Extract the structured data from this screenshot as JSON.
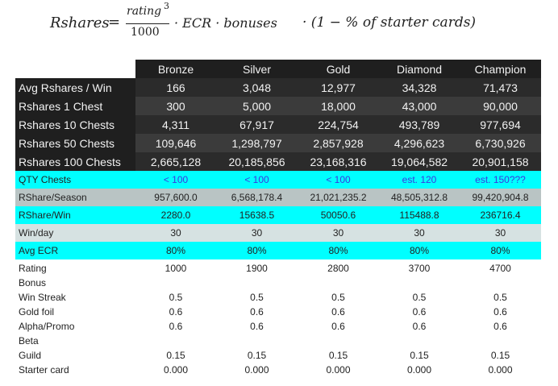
{
  "formula": {
    "lhs": "Rshares",
    "equals": "=",
    "numerator": "rating",
    "exponent": "3",
    "denominator": "1000",
    "middle": "· ECR · bonuses",
    "tail": "· (1 − % of starter cards)"
  },
  "table": {
    "headers": [
      "Bronze",
      "Silver",
      "Gold",
      "Diamond",
      "Champion"
    ],
    "dark_rows": [
      {
        "label": "Avg Rshares / Win",
        "values": [
          "166",
          "3,048",
          "12,977",
          "34,328",
          "71,473"
        ]
      },
      {
        "label": "Rshares 1 Chest",
        "values": [
          "300",
          "5,000",
          "18,000",
          "43,000",
          "90,000"
        ]
      },
      {
        "label": "Rshares 10 Chests",
        "values": [
          "4,311",
          "67,917",
          "224,754",
          "493,789",
          "977,694"
        ]
      },
      {
        "label": "Rshares 50 Chests",
        "values": [
          "109,646",
          "1,298,797",
          "2,857,928",
          "4,296,623",
          "6,730,926"
        ]
      },
      {
        "label": "Rshares 100 Chests",
        "values": [
          "2,665,128",
          "20,185,856",
          "23,168,316",
          "19,064,582",
          "20,901,158"
        ]
      }
    ],
    "qty": {
      "label": "QTY Chests",
      "values": [
        "< 100",
        "< 100",
        "< 100",
        "est. 120",
        "est. 150???"
      ]
    },
    "season": {
      "label": "RShare/Season",
      "values": [
        "957,600.0",
        "6,568,178.4",
        "21,021,235.2",
        "48,505,312.8",
        "99,420,904.8"
      ]
    },
    "per_win": {
      "label": "RShare/Win",
      "values": [
        "2280.0",
        "15638.5",
        "50050.6",
        "115488.8",
        "236716.4"
      ]
    },
    "win_day": {
      "label": "Win/day",
      "values": [
        "30",
        "30",
        "30",
        "30",
        "30"
      ]
    },
    "ecr": {
      "label": "Avg ECR",
      "values": [
        "80%",
        "80%",
        "80%",
        "80%",
        "80%"
      ]
    }
  },
  "details": [
    {
      "label": "Rating",
      "values": [
        "1000",
        "1900",
        "2800",
        "3700",
        "4700"
      ]
    },
    {
      "label": "Bonus",
      "values": [
        "",
        "",
        "",
        "",
        ""
      ]
    },
    {
      "label": "Win Streak",
      "values": [
        "0.5",
        "0.5",
        "0.5",
        "0.5",
        "0.5"
      ]
    },
    {
      "label": "Gold foil",
      "values": [
        "0.6",
        "0.6",
        "0.6",
        "0.6",
        "0.6"
      ]
    },
    {
      "label": "Alpha/Promo",
      "values": [
        "0.6",
        "0.6",
        "0.6",
        "0.6",
        "0.6"
      ]
    },
    {
      "label": "Beta",
      "values": [
        "",
        "",
        "",
        "",
        ""
      ]
    },
    {
      "label": "Guild",
      "values": [
        "0.15",
        "0.15",
        "0.15",
        "0.15",
        "0.15"
      ]
    },
    {
      "label": "Starter card",
      "values": [
        "0.000",
        "0.000",
        "0.000",
        "0.000",
        "0.000"
      ]
    }
  ],
  "colors": {
    "header_bg": "#1f1f1f",
    "dark_row_a": "#2b2b2b",
    "dark_row_b": "#3b3b3b",
    "cyan": "#00ffff",
    "grey_row": "#b9c4c4",
    "pale_row": "#d6e2e2",
    "estimate_text": "#3a3ae0"
  }
}
